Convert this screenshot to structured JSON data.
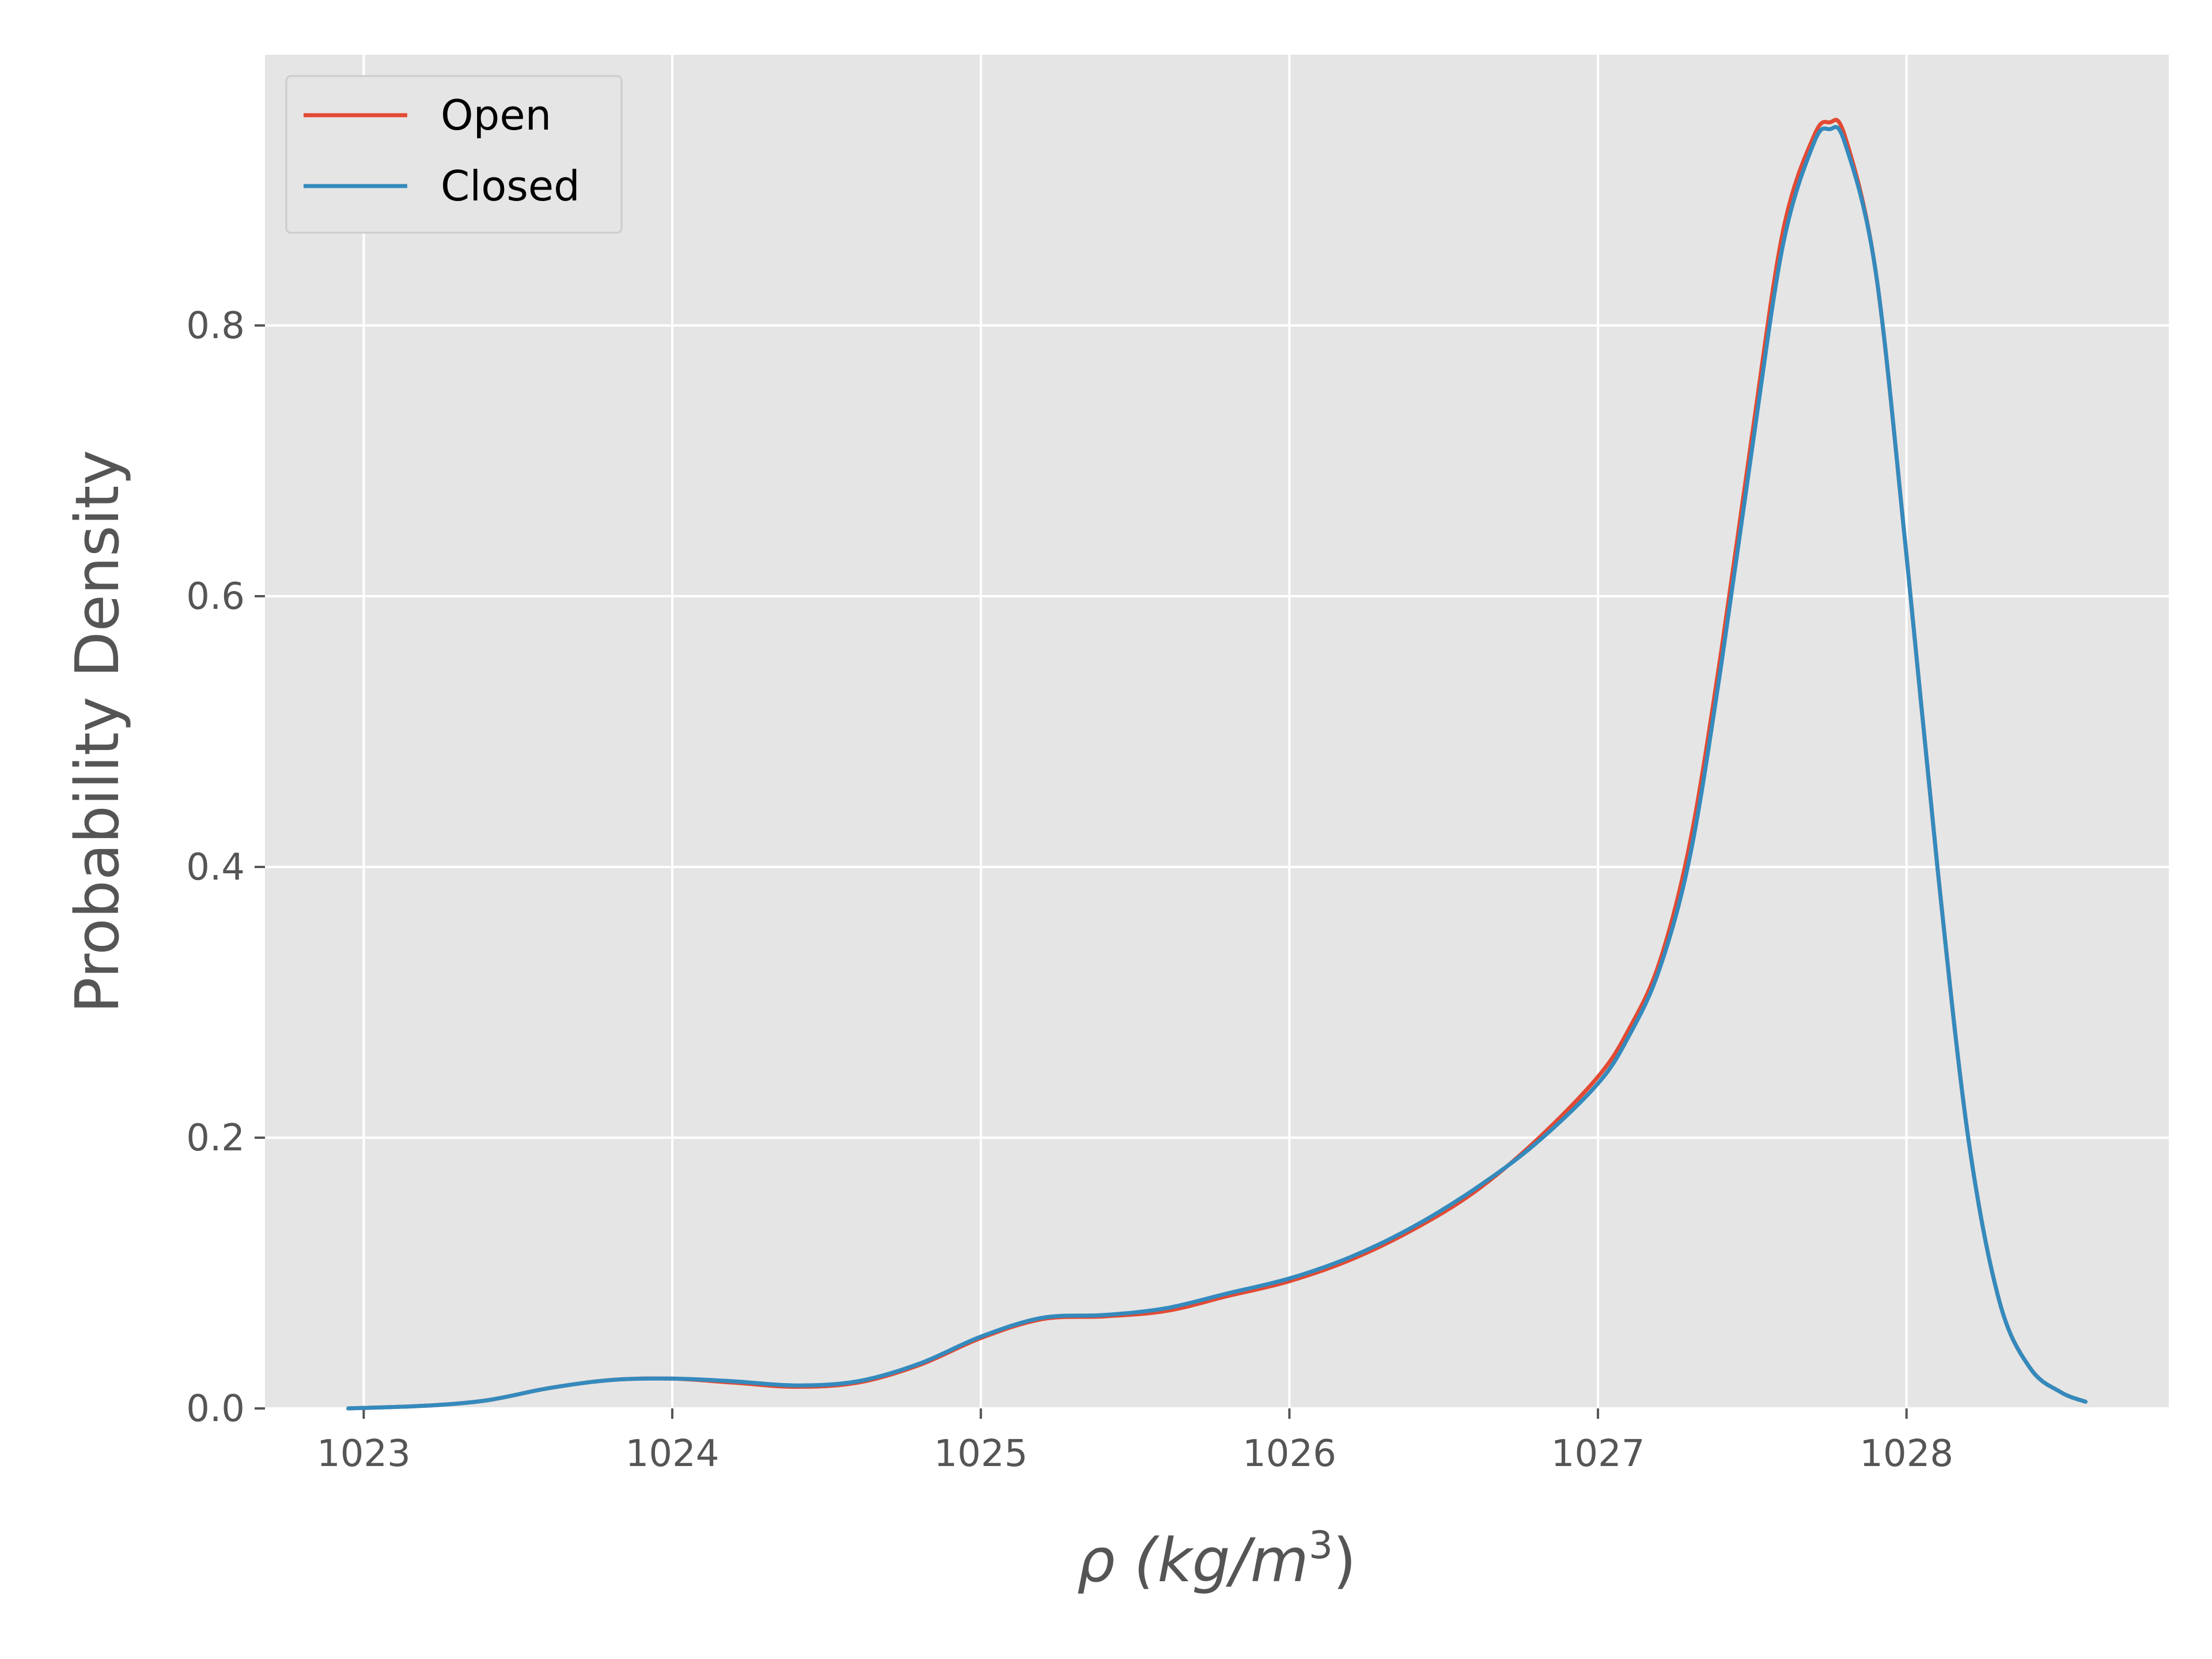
{
  "chart_data": {
    "type": "line",
    "title": "",
    "xlabel": "ρ (kg/m",
    "xlabel_sup": "3",
    "xlabel_close": ")",
    "ylabel": "Probability Density",
    "xlim": [
      1022.68,
      1028.85
    ],
    "ylim": [
      0,
      1.0
    ],
    "xticks": [
      1023,
      1024,
      1025,
      1026,
      1027,
      1028
    ],
    "xtick_labels": [
      "1023",
      "1024",
      "1025",
      "1026",
      "1027",
      "1028"
    ],
    "yticks": [
      0.0,
      0.2,
      0.4,
      0.6,
      0.8
    ],
    "ytick_labels": [
      "0.0",
      "0.2",
      "0.4",
      "0.6",
      "0.8"
    ],
    "grid": true,
    "legend_position": "top-left",
    "series": [
      {
        "name": "Open",
        "color": "#E24A33",
        "x": [
          1022.95,
          1023.2,
          1023.4,
          1023.6,
          1023.8,
          1024.0,
          1024.2,
          1024.4,
          1024.6,
          1024.8,
          1025.0,
          1025.2,
          1025.4,
          1025.6,
          1025.8,
          1026.0,
          1026.2,
          1026.4,
          1026.6,
          1026.8,
          1027.0,
          1027.1,
          1027.2,
          1027.3,
          1027.4,
          1027.5,
          1027.6,
          1027.7,
          1027.75,
          1027.8,
          1027.9,
          1028.0,
          1028.1,
          1028.2,
          1028.3,
          1028.4,
          1028.5,
          1028.58
        ],
        "y": [
          0.0,
          0.002,
          0.006,
          0.015,
          0.021,
          0.022,
          0.019,
          0.016,
          0.019,
          0.032,
          0.052,
          0.066,
          0.068,
          0.072,
          0.083,
          0.094,
          0.11,
          0.132,
          0.16,
          0.198,
          0.245,
          0.28,
          0.33,
          0.42,
          0.56,
          0.72,
          0.87,
          0.94,
          0.95,
          0.94,
          0.84,
          0.63,
          0.4,
          0.2,
          0.08,
          0.03,
          0.012,
          0.005
        ]
      },
      {
        "name": "Closed",
        "color": "#348ABD",
        "x": [
          1022.95,
          1023.2,
          1023.4,
          1023.6,
          1023.8,
          1024.0,
          1024.2,
          1024.4,
          1024.6,
          1024.8,
          1025.0,
          1025.2,
          1025.4,
          1025.6,
          1025.8,
          1026.0,
          1026.2,
          1026.4,
          1026.6,
          1026.8,
          1027.0,
          1027.1,
          1027.2,
          1027.3,
          1027.4,
          1027.5,
          1027.6,
          1027.7,
          1027.75,
          1027.8,
          1027.9,
          1028.0,
          1028.1,
          1028.2,
          1028.3,
          1028.4,
          1028.5,
          1028.58
        ],
        "y": [
          0.0,
          0.002,
          0.006,
          0.015,
          0.021,
          0.022,
          0.02,
          0.017,
          0.02,
          0.033,
          0.053,
          0.067,
          0.069,
          0.074,
          0.085,
          0.096,
          0.112,
          0.134,
          0.162,
          0.196,
          0.24,
          0.275,
          0.325,
          0.41,
          0.55,
          0.71,
          0.86,
          0.935,
          0.945,
          0.935,
          0.84,
          0.63,
          0.4,
          0.2,
          0.08,
          0.03,
          0.012,
          0.005
        ]
      }
    ]
  }
}
